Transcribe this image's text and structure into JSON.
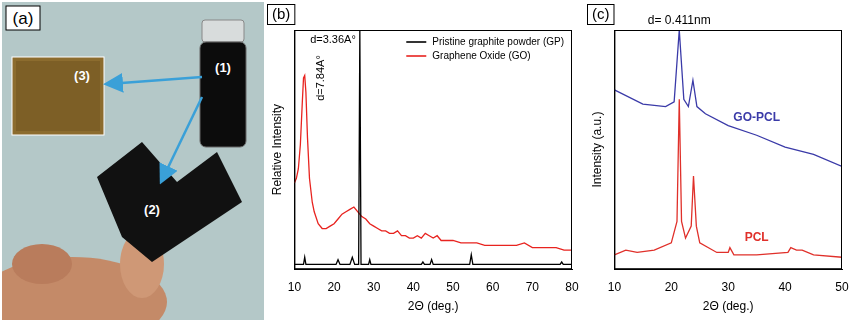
{
  "photo": {
    "panel": "(a)",
    "labels": [
      "(1)",
      "(2)",
      "(3)"
    ]
  },
  "chart_data": [
    {
      "type": "line",
      "panel": "(b)",
      "x_label": "2Θ (deg.)",
      "y_label": "Relative Intensity",
      "xlim": [
        10,
        80
      ],
      "xticks": [
        10,
        20,
        30,
        40,
        50,
        60,
        70,
        80
      ],
      "ylim": [
        0,
        100
      ],
      "yticks": [],
      "tick_labels": "x",
      "legend": "upper right",
      "series": [
        {
          "name": "Pristine graphite powder (GP)",
          "color": "#000000",
          "annotation": "d=3.36A°",
          "x": [
            10,
            12.3,
            12.6,
            12.9,
            20.5,
            21,
            21.5,
            24,
            24.6,
            25.2,
            26.2,
            26.5,
            26.8,
            28.7,
            29,
            29.3,
            42,
            42.4,
            42.8,
            44.2,
            44.6,
            45,
            54.2,
            54.6,
            55,
            77,
            77.4,
            77.8,
            80
          ],
          "values": [
            2,
            2,
            5,
            2,
            2,
            4,
            2,
            2,
            5,
            2,
            2,
            100,
            2,
            2,
            4,
            2,
            2,
            3,
            2,
            2,
            4,
            2,
            2,
            6,
            2,
            2,
            3,
            2,
            2
          ]
        },
        {
          "name": "Graphene Oxide (GO)",
          "color": "#e8231f",
          "annotation": "d=7.84A°",
          "x": [
            10,
            10.5,
            11,
            11.5,
            12,
            12.3,
            12.6,
            12.9,
            13.3,
            13.8,
            14.5,
            15,
            16,
            17,
            18,
            19,
            20,
            21,
            22,
            23,
            24,
            25,
            26,
            27,
            28,
            29,
            30,
            31,
            32,
            33,
            34,
            35,
            36,
            37,
            38,
            39,
            40,
            41,
            42,
            43,
            44,
            45,
            46,
            47,
            48,
            50,
            52,
            54,
            56,
            58,
            60,
            62,
            64,
            66,
            68,
            70,
            72,
            74,
            76,
            78,
            80
          ],
          "values": [
            36,
            38,
            42,
            52,
            70,
            80,
            81,
            74,
            55,
            38,
            28,
            24,
            19,
            17,
            17,
            18,
            19,
            21,
            23,
            24,
            25,
            26,
            24,
            22,
            21,
            19,
            18,
            17,
            16,
            16,
            15,
            15,
            16,
            14,
            14,
            13,
            13,
            14,
            13,
            15,
            14,
            13,
            14,
            12,
            12,
            12,
            11,
            11,
            11,
            10,
            10,
            10,
            10,
            10,
            11,
            9,
            9,
            9,
            9,
            8,
            8
          ]
        }
      ]
    },
    {
      "type": "line",
      "panel": "(c)",
      "x_label": "2Θ (deg.)",
      "y_label": "Intensity (a.u.)",
      "xlim": [
        10,
        50
      ],
      "xticks": [
        10,
        20,
        30,
        40,
        50
      ],
      "ylim": [
        0,
        100
      ],
      "yticks": [],
      "tick_labels": "x",
      "series": [
        {
          "name": "GO-PCL",
          "color": "#3a3aa8",
          "annotation": "d= 0.411nm",
          "x": [
            10,
            15,
            19,
            20.5,
            21.4,
            22.2,
            23,
            23.8,
            24.5,
            26,
            30,
            35,
            40,
            45,
            50
          ],
          "values": [
            75,
            69,
            68,
            70,
            100,
            71,
            68,
            79,
            68,
            65,
            60,
            56,
            51,
            48,
            43
          ]
        },
        {
          "name": "PCL",
          "color": "#e0302a",
          "x": [
            10,
            12,
            14,
            17,
            20,
            21,
            21.4,
            21.8,
            22.5,
            23.5,
            23.9,
            24.4,
            25,
            28,
            30,
            30.3,
            31,
            35,
            40.5,
            41,
            42,
            43,
            45,
            50
          ],
          "values": [
            6,
            8,
            7,
            8,
            11,
            20,
            71,
            20,
            13,
            18,
            39,
            18,
            11,
            7,
            7,
            9,
            6,
            6,
            7,
            9,
            8,
            8,
            6,
            5
          ]
        }
      ]
    }
  ]
}
